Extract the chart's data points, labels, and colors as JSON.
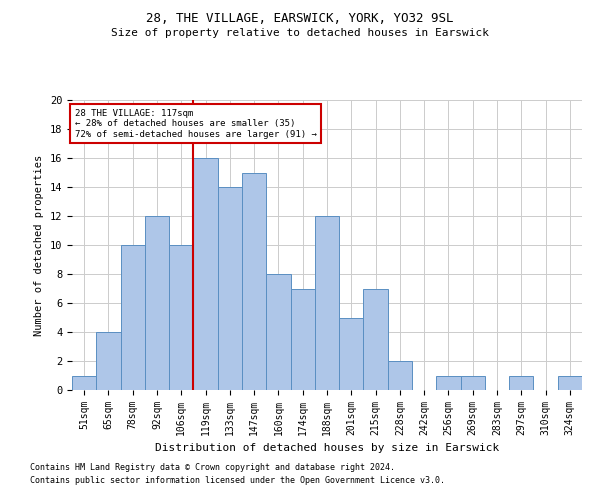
{
  "title1": "28, THE VILLAGE, EARSWICK, YORK, YO32 9SL",
  "title2": "Size of property relative to detached houses in Earswick",
  "xlabel": "Distribution of detached houses by size in Earswick",
  "ylabel": "Number of detached properties",
  "bar_labels": [
    "51sqm",
    "65sqm",
    "78sqm",
    "92sqm",
    "106sqm",
    "119sqm",
    "133sqm",
    "147sqm",
    "160sqm",
    "174sqm",
    "188sqm",
    "201sqm",
    "215sqm",
    "228sqm",
    "242sqm",
    "256sqm",
    "269sqm",
    "283sqm",
    "297sqm",
    "310sqm",
    "324sqm"
  ],
  "bar_values": [
    1,
    4,
    10,
    12,
    10,
    16,
    14,
    15,
    8,
    7,
    12,
    5,
    7,
    2,
    0,
    1,
    1,
    0,
    1,
    0,
    1
  ],
  "bar_color": "#aec6e8",
  "bar_edge_color": "#5a8fc2",
  "annotation_box_text": "28 THE VILLAGE: 117sqm\n← 28% of detached houses are smaller (35)\n72% of semi-detached houses are larger (91) →",
  "annotation_box_color": "#cc0000",
  "vline_color": "#cc0000",
  "ylim": [
    0,
    20
  ],
  "yticks": [
    0,
    2,
    4,
    6,
    8,
    10,
    12,
    14,
    16,
    18,
    20
  ],
  "footnote1": "Contains HM Land Registry data © Crown copyright and database right 2024.",
  "footnote2": "Contains public sector information licensed under the Open Government Licence v3.0.",
  "background_color": "#ffffff",
  "grid_color": "#cccccc"
}
